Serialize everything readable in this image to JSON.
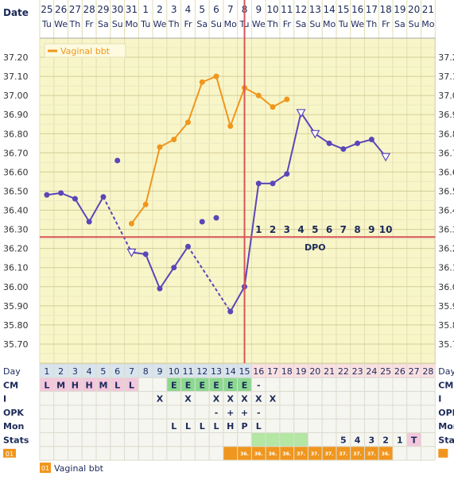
{
  "chart_data": {
    "type": "line",
    "title": "",
    "xlabel": "",
    "ylabel": "",
    "ylim": [
      35.6,
      37.3
    ],
    "y_ticks": [
      "37.20",
      "37.10",
      "37.00",
      "36.90",
      "36.80",
      "36.70",
      "36.60",
      "36.50",
      "36.40",
      "36.30",
      "36.20",
      "36.10",
      "36.00",
      "35.90",
      "35.80",
      "35.70"
    ],
    "date_label": "Date",
    "dates": [
      "25",
      "26",
      "27",
      "28",
      "29",
      "30",
      "31",
      "1",
      "2",
      "3",
      "4",
      "5",
      "6",
      "7",
      "8",
      "9",
      "10",
      "11",
      "12",
      "13",
      "14",
      "15",
      "16",
      "17",
      "18",
      "19",
      "20",
      "21"
    ],
    "weekdays": [
      "Tu",
      "We",
      "Th",
      "Fr",
      "Sa",
      "Su",
      "Mo",
      "Tu",
      "We",
      "Th",
      "Fr",
      "Sa",
      "Su",
      "Mo",
      "Tu",
      "We",
      "Th",
      "Fr",
      "Sa",
      "Su",
      "Mo",
      "Tu",
      "We",
      "Th",
      "Fr",
      "Sa",
      "Su",
      "Mo"
    ],
    "grid": true,
    "legend": {
      "placement": "top-left",
      "label": "Vaginal bbt"
    },
    "coverline": 36.26,
    "ovulation_day": 15,
    "dpo_label": "DPO",
    "dpo_numbers": [
      "1",
      "2",
      "3",
      "4",
      "5",
      "6",
      "7",
      "8",
      "9",
      "10"
    ],
    "series": [
      {
        "name": "Vaginal bbt",
        "color": "#f0961e",
        "points": [
          [
            7,
            36.33
          ],
          [
            8,
            36.43
          ],
          [
            9,
            36.73
          ],
          [
            10,
            36.77
          ],
          [
            11,
            36.86
          ],
          [
            12,
            37.07
          ],
          [
            13,
            37.1
          ],
          [
            14,
            36.84
          ],
          [
            15,
            37.04
          ],
          [
            16,
            37.0
          ],
          [
            17,
            36.94
          ],
          [
            18,
            36.98
          ]
        ]
      },
      {
        "color": "#5a46b8",
        "points": [
          [
            1,
            36.48
          ],
          [
            2,
            36.49
          ],
          [
            3,
            36.46
          ],
          [
            4,
            36.34
          ],
          [
            5,
            36.47
          ],
          [
            7,
            36.18
          ],
          [
            8,
            36.17
          ],
          [
            9,
            35.99
          ],
          [
            10,
            36.1
          ],
          [
            11,
            36.21
          ],
          [
            14,
            35.87
          ],
          [
            15,
            36.0
          ],
          [
            16,
            36.54
          ],
          [
            17,
            36.54
          ],
          [
            18,
            36.59
          ],
          [
            19,
            36.91
          ],
          [
            20,
            36.8
          ],
          [
            21,
            36.75
          ],
          [
            22,
            36.72
          ],
          [
            23,
            36.75
          ],
          [
            24,
            36.77
          ],
          [
            25,
            36.68
          ]
        ],
        "discarded": [
          [
            6,
            36.66
          ],
          [
            12,
            36.34
          ],
          [
            13,
            36.36
          ]
        ]
      }
    ]
  },
  "rows": {
    "day_label": "Day",
    "days": [
      "1",
      "2",
      "3",
      "4",
      "5",
      "6",
      "7",
      "8",
      "9",
      "10",
      "11",
      "12",
      "13",
      "14",
      "15",
      "16",
      "17",
      "18",
      "19",
      "20",
      "21",
      "22",
      "23",
      "24",
      "25",
      "26",
      "27",
      "28"
    ],
    "cm_label": "CM",
    "cm": [
      "L",
      "M",
      "H",
      "H",
      "M",
      "L",
      "L",
      "",
      "",
      "E",
      "E",
      "E",
      "E",
      "E",
      "E",
      "-",
      "",
      "",
      "",
      "",
      "",
      "",
      "",
      "",
      "",
      "",
      "",
      ""
    ],
    "i_label": "I",
    "i": [
      "",
      "",
      "",
      "",
      "",
      "",
      "",
      "",
      "X",
      "",
      "X",
      "",
      "X",
      "X",
      "X",
      "X",
      "X",
      "",
      "",
      "",
      "",
      "",
      "",
      "",
      "",
      "",
      "",
      ""
    ],
    "opk_label": "OPK",
    "opk": [
      "",
      "",
      "",
      "",
      "",
      "",
      "",
      "",
      "",
      "",
      "",
      "",
      "-",
      "+",
      "+",
      "-",
      "",
      "",
      "",
      "",
      "",
      "",
      "",
      "",
      "",
      "",
      "",
      ""
    ],
    "mon_label": "Mon",
    "mon": [
      "",
      "",
      "",
      "",
      "",
      "",
      "",
      "",
      "",
      "L",
      "L",
      "L",
      "L",
      "H",
      "P",
      "L",
      "",
      "",
      "",
      "",
      "",
      "",
      "",
      "",
      "",
      "",
      "",
      ""
    ],
    "stats_label": "Stats",
    "stats": [
      "",
      "",
      "",
      "",
      "",
      "",
      "",
      "",
      "",
      "",
      "",
      "",
      "",
      "",
      "",
      "",
      "",
      "",
      "",
      "",
      "",
      "5",
      "4",
      "3",
      "2",
      "1",
      "T",
      ""
    ],
    "temp_badge": "01",
    "temps": [
      "",
      "",
      "",
      "",
      "",
      "",
      "",
      "",
      "",
      "",
      "",
      "",
      "",
      "",
      "36.",
      "36.",
      "36.",
      "36.",
      "37.",
      "37.",
      "37.",
      "37.",
      "37.",
      "37.",
      "36.",
      "",
      "",
      ""
    ]
  },
  "footer_legend": {
    "badge": "01",
    "label": "Vaginal bbt"
  }
}
